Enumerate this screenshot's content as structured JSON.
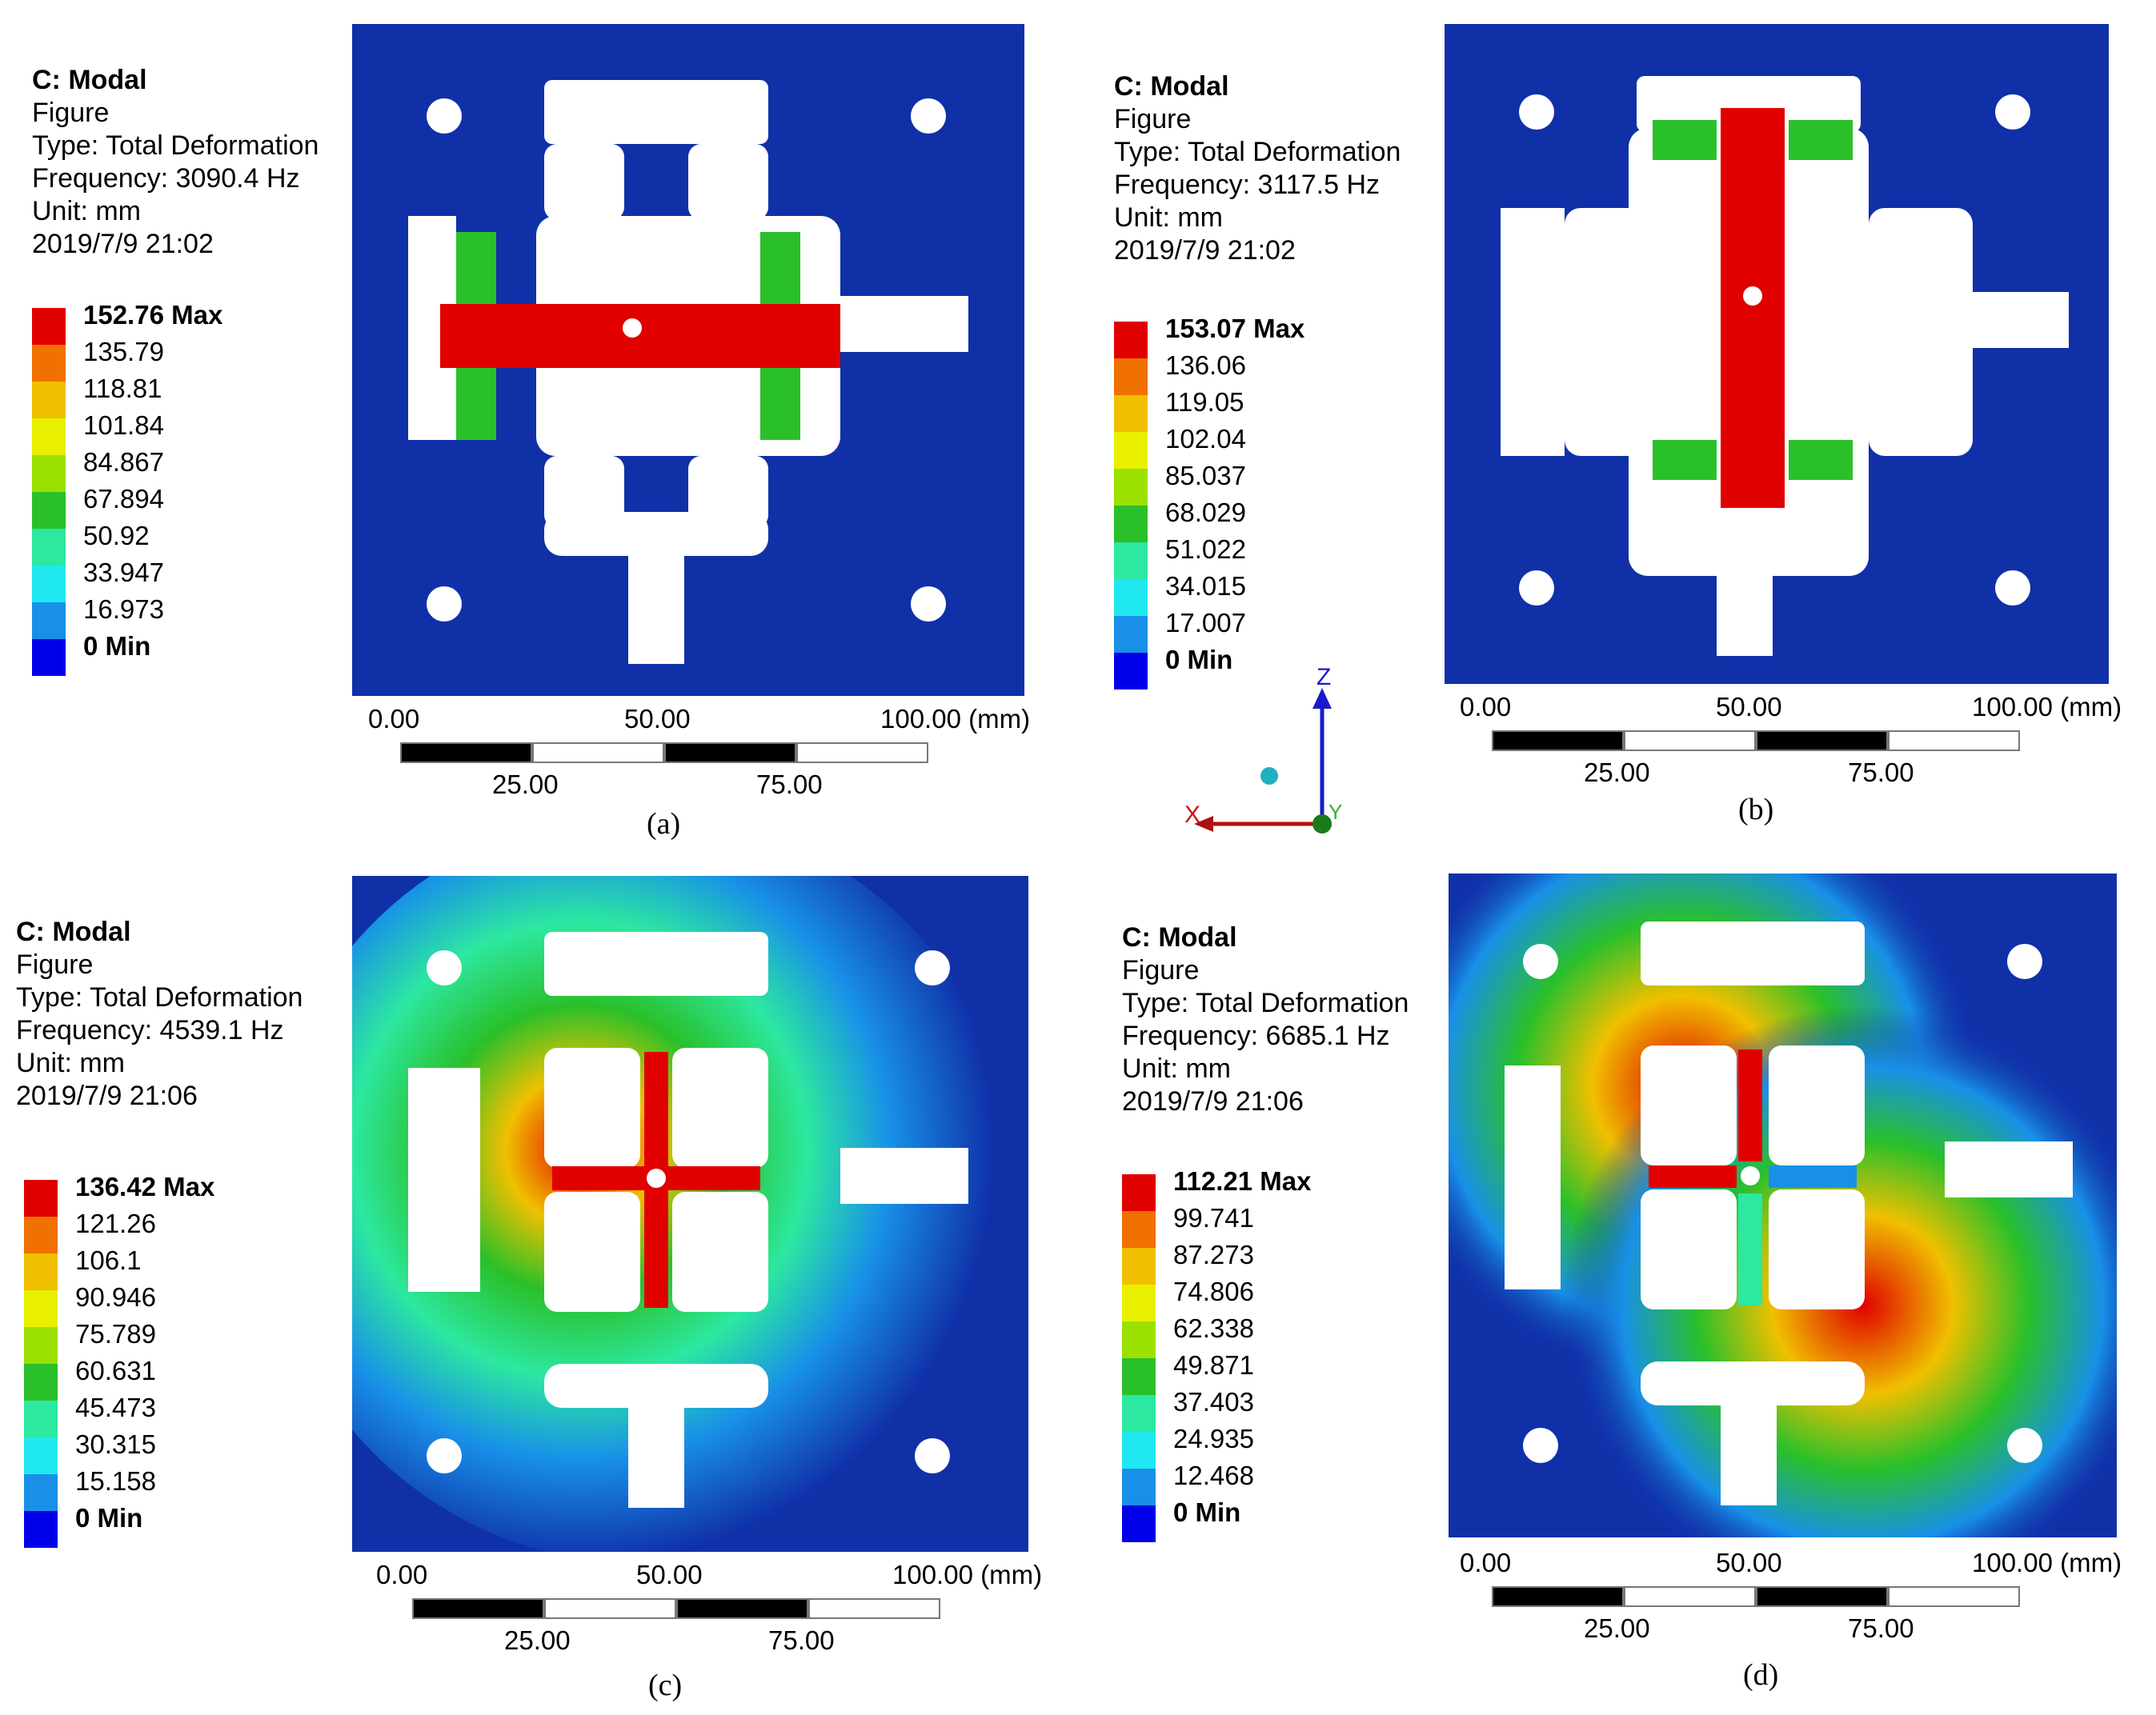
{
  "colors": {
    "background_blue": "#1030a8",
    "max_red": "#e00000",
    "legend_bands": [
      "#e00000",
      "#f07000",
      "#f0c000",
      "#e8f000",
      "#9ce000",
      "#2ac02a",
      "#2ce8a0",
      "#20e8f0",
      "#1890e8",
      "#0000e8"
    ]
  },
  "panels": [
    {
      "id": "a",
      "title": "C: Modal",
      "subtitle": "Figure",
      "type": "Type: Total Deformation",
      "frequency": "Frequency: 3090.4 Hz",
      "unit": "Unit: mm",
      "date": "2019/7/9 21:02",
      "legend": [
        "152.76 Max",
        "135.79",
        "118.81",
        "101.84",
        "84.867",
        "67.894",
        "50.92",
        "33.947",
        "16.973",
        "0 Min"
      ],
      "scale": {
        "top": [
          "0.00",
          "50.00",
          "100.00 (mm)"
        ],
        "bottom": [
          "25.00",
          "75.00"
        ]
      },
      "caption": "(a)",
      "mode_pattern": "horizontal-beam"
    },
    {
      "id": "b",
      "title": "C: Modal",
      "subtitle": "Figure",
      "type": "Type: Total Deformation",
      "frequency": "Frequency: 3117.5 Hz",
      "unit": "Unit: mm",
      "date": "2019/7/9 21:02",
      "legend": [
        "153.07 Max",
        "136.06",
        "119.05",
        "102.04",
        "85.037",
        "68.029",
        "51.022",
        "34.015",
        "17.007",
        "0 Min"
      ],
      "scale": {
        "top": [
          "0.00",
          "50.00",
          "100.00 (mm)"
        ],
        "bottom": [
          "25.00",
          "75.00"
        ]
      },
      "caption": "(b)",
      "mode_pattern": "vertical-beam"
    },
    {
      "id": "c",
      "title": "C: Modal",
      "subtitle": "Figure",
      "type": "Type: Total Deformation",
      "frequency": "Frequency: 4539.1 Hz",
      "unit": "Unit: mm",
      "date": "2019/7/9 21:06",
      "legend": [
        "136.42 Max",
        "121.26",
        "106.1",
        "90.946",
        "75.789",
        "60.631",
        "45.473",
        "30.315",
        "15.158",
        "0 Min"
      ],
      "scale": {
        "top": [
          "0.00",
          "50.00",
          "100.00 (mm)"
        ],
        "bottom": [
          "25.00",
          "75.00"
        ]
      },
      "caption": "(c)",
      "mode_pattern": "radial"
    },
    {
      "id": "d",
      "title": "C: Modal",
      "subtitle": "Figure",
      "type": "Type: Total Deformation",
      "frequency": "Frequency: 6685.1 Hz",
      "unit": "Unit: mm",
      "date": "2019/7/9 21:06",
      "legend": [
        "112.21 Max",
        "99.741",
        "87.273",
        "74.806",
        "62.338",
        "49.871",
        "37.403",
        "24.935",
        "12.468",
        "0 Min"
      ],
      "scale": {
        "top": [
          "0.00",
          "50.00",
          "100.00 (mm)"
        ],
        "bottom": [
          "25.00",
          "75.00"
        ]
      },
      "caption": "(d)",
      "mode_pattern": "twisting"
    }
  ],
  "triad": {
    "z": "Z",
    "x": "X",
    "y": "Y"
  }
}
